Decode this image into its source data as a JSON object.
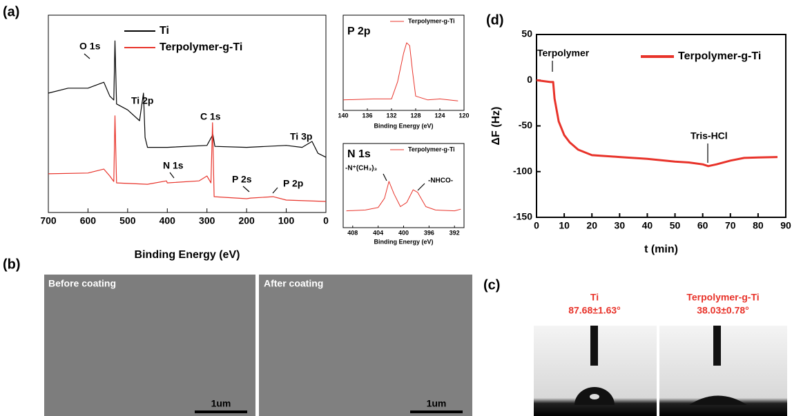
{
  "chart_data": [
    {
      "type": "line",
      "xlabel": "Binding Energy (eV)",
      "xlim": [
        700,
        0
      ],
      "xticks": [
        700,
        600,
        500,
        400,
        300,
        200,
        100,
        0
      ],
      "ylim": [
        0,
        100
      ],
      "legend": "upper center",
      "series": [
        {
          "name": "Ti",
          "color": "#000000",
          "x": [
            700,
            650,
            600,
            560,
            545,
            535,
            532,
            528,
            500,
            470,
            464,
            460,
            456,
            450,
            400,
            300,
            285,
            280,
            200,
            100,
            60,
            35,
            20,
            0
          ],
          "values": [
            60.5,
            63,
            63,
            66,
            59,
            57,
            87,
            55,
            52,
            46.5,
            55,
            60.5,
            38,
            33,
            33,
            34,
            39.5,
            33.5,
            33,
            34,
            33,
            36,
            30,
            28
          ]
        },
        {
          "name": "Terpolymer-g-Ti",
          "color": "#e8332a",
          "x": [
            700,
            600,
            560,
            545,
            535,
            532,
            528,
            450,
            402,
            400,
            320,
            300,
            290,
            286,
            282,
            200,
            190,
            133,
            100,
            0
          ],
          "values": [
            19.6,
            20,
            22,
            18.5,
            15.7,
            49,
            15,
            14.3,
            16,
            15,
            16,
            18.5,
            15,
            45.5,
            8,
            7,
            7.3,
            8,
            6.3,
            5.6
          ]
        }
      ],
      "annotations": [
        "O 1s",
        "Ti 2p",
        "C 1s",
        "N 1s",
        "P 2s",
        "P 2p",
        "Ti 3p"
      ]
    },
    {
      "type": "line",
      "title": "P 2p",
      "xlabel": "Binding Energy (eV)",
      "xlim": [
        140,
        120
      ],
      "xticks": [
        140,
        136,
        132,
        128,
        124,
        120
      ],
      "ylim": [
        0,
        100
      ],
      "legend": "upper right",
      "series": [
        {
          "name": "Terpolymer-g-Ti",
          "color": "#e8332a",
          "x": [
            140,
            135,
            132,
            131,
            130,
            129.5,
            129,
            128.5,
            128,
            126,
            124,
            121
          ],
          "values": [
            11,
            12,
            12,
            30,
            60,
            71,
            68,
            40,
            15,
            11,
            12,
            10
          ]
        }
      ]
    },
    {
      "type": "line",
      "title": "N 1s",
      "xlabel": "Binding Energy (eV)",
      "xlim": [
        409.5,
        390.5
      ],
      "xticks": [
        408,
        404,
        400,
        396,
        392
      ],
      "ylim": [
        0,
        100
      ],
      "legend": "upper right",
      "series": [
        {
          "name": "Terpolymer-g-Ti",
          "color": "#e8332a",
          "x": [
            409,
            406,
            404,
            403,
            402.3,
            401.5,
            400.5,
            399.5,
            398.5,
            397.8,
            396.5,
            395,
            392,
            391
          ],
          "values": [
            20,
            21,
            24,
            35,
            55,
            40,
            25,
            30,
            45,
            42,
            25,
            21,
            20,
            22
          ]
        }
      ],
      "annotations": [
        "-N⁺(CH₃)₃",
        "-NHCO-"
      ]
    },
    {
      "type": "line",
      "xlabel": "t (min)",
      "ylabel": "ΔF (Hz)",
      "xlim": [
        0,
        90
      ],
      "xticks": [
        0,
        10,
        20,
        30,
        40,
        50,
        60,
        70,
        80,
        90
      ],
      "ylim": [
        -150,
        50
      ],
      "yticks": [
        50,
        0,
        -50,
        -100,
        -150
      ],
      "legend": "upper right",
      "series": [
        {
          "name": "Terpolymer-g-Ti",
          "color": "#e8332a",
          "x": [
            0,
            5,
            6,
            6.5,
            8,
            10,
            12,
            15,
            20,
            30,
            40,
            50,
            55,
            60,
            62,
            65,
            70,
            75,
            80,
            87
          ],
          "values": [
            0,
            -2,
            -2,
            -20,
            -45,
            -60,
            -68,
            -76,
            -82,
            -84,
            -86,
            -89,
            -90,
            -92,
            -94,
            -92,
            -88,
            -85,
            -84.5,
            -84
          ]
        }
      ],
      "annotations": [
        "Terpolymer",
        "Tris-HCl"
      ]
    }
  ],
  "panels": {
    "labels": [
      "(a)",
      "(b)",
      "(c)",
      "(d)"
    ],
    "sem": [
      {
        "caption": "Before coating",
        "scale": "1um"
      },
      {
        "caption": "After coating",
        "scale": "1um"
      }
    ],
    "contact_angle": [
      {
        "label": "Ti",
        "angle": "87.68±1.63°"
      },
      {
        "label": "Terpolymer-g-Ti",
        "angle": "38.03±0.78°"
      }
    ]
  }
}
